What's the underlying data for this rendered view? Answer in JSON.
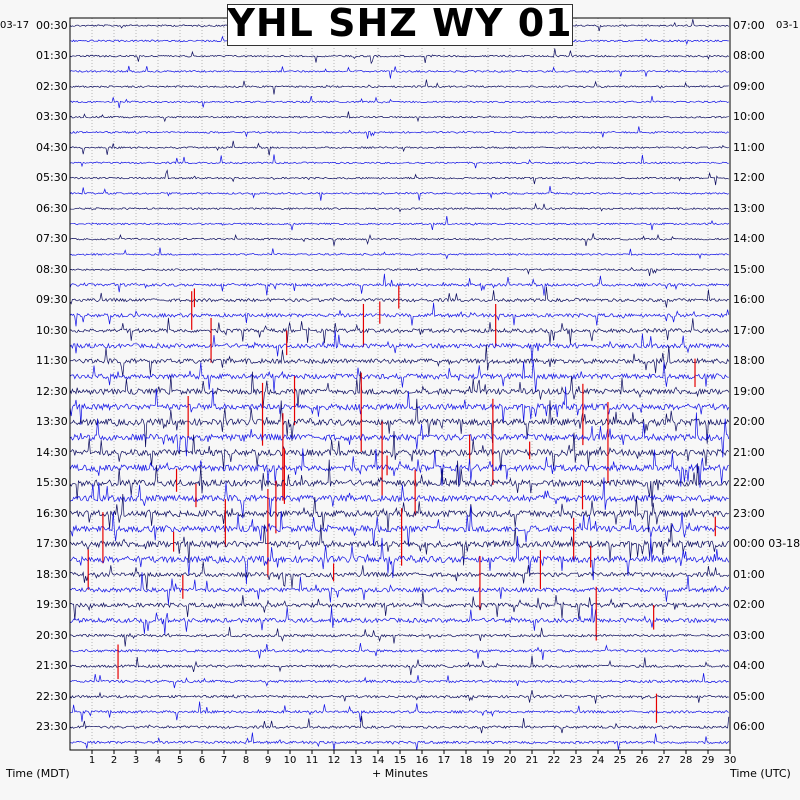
{
  "chart_data": {
    "type": "line",
    "title": "YHL SHZ WY 01",
    "date_left": "03-17",
    "date_right_top": "03-1",
    "date_right_mid": "03-18",
    "xlabel": "+ Minutes",
    "ylabel_left": "Time (MDT)",
    "ylabel_right": "Time (UTC)",
    "x_ticks": [
      "1",
      "2",
      "3",
      "4",
      "5",
      "6",
      "7",
      "8",
      "9",
      "10",
      "11",
      "12",
      "13",
      "14",
      "15",
      "16",
      "17",
      "18",
      "19",
      "20",
      "21",
      "22",
      "23",
      "24",
      "25",
      "26",
      "27",
      "28",
      "29",
      "30"
    ],
    "xlim": [
      0,
      30
    ],
    "left_times": [
      "00:30",
      "01:30",
      "02:30",
      "03:30",
      "04:30",
      "05:30",
      "06:30",
      "07:30",
      "08:30",
      "09:30",
      "10:30",
      "11:30",
      "12:30",
      "13:30",
      "14:30",
      "15:30",
      "16:30",
      "17:30",
      "18:30",
      "19:30",
      "20:30",
      "21:30",
      "22:30",
      "23:30"
    ],
    "right_times": [
      "07:00",
      "08:00",
      "09:00",
      "10:00",
      "11:00",
      "12:00",
      "13:00",
      "14:00",
      "15:00",
      "16:00",
      "17:00",
      "18:00",
      "19:00",
      "20:00",
      "21:00",
      "22:00",
      "23:00",
      "00:00",
      "01:00",
      "02:00",
      "03:00",
      "04:00",
      "05:00",
      "06:00"
    ],
    "trace_count": 48,
    "colors": {
      "dark": "#0b0b5e",
      "blue": "#1010e6",
      "red": "#e60000",
      "grid": "#555555"
    }
  }
}
